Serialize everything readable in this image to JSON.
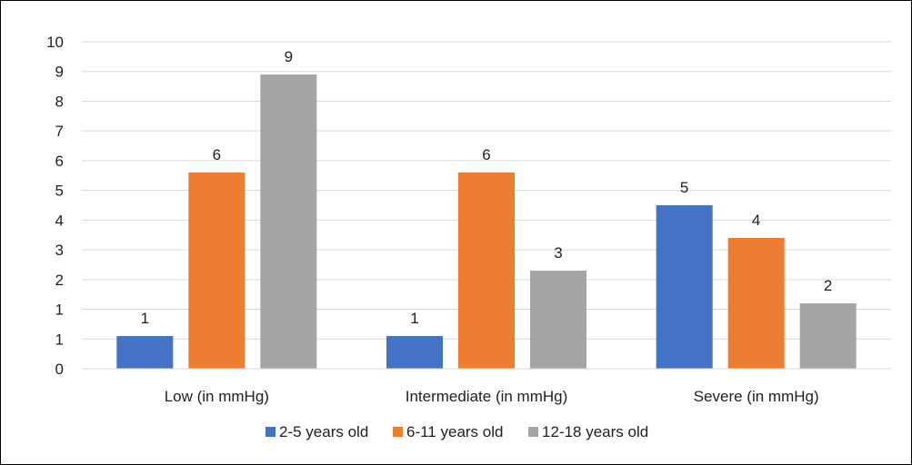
{
  "chart_data": {
    "type": "bar",
    "categories": [
      "Low (in mmHg)",
      "Intermediate (in mmHg)",
      "Severe (in mmHg)"
    ],
    "series": [
      {
        "name": "2-5 years old",
        "values": [
          1,
          1,
          5
        ],
        "color": "#4472C4"
      },
      {
        "name": "6-11 years old",
        "values": [
          6,
          6,
          4
        ],
        "color": "#ED7D31"
      },
      {
        "name": "12-18 years old",
        "values": [
          9,
          3,
          2
        ],
        "color": "#A5A5A5"
      }
    ],
    "y_ticks": [
      "0",
      "1",
      "1",
      "2",
      "3",
      "4",
      "5",
      "6",
      "7",
      "8",
      "9",
      "10"
    ],
    "data_labels": [
      [
        "1",
        "1",
        "5"
      ],
      [
        "6",
        "6",
        "4"
      ],
      [
        "9",
        "3",
        "2"
      ]
    ],
    "ylim": [
      0,
      10
    ],
    "grid": true,
    "legend_position": "bottom",
    "title": "",
    "xlabel": "",
    "ylabel": ""
  }
}
